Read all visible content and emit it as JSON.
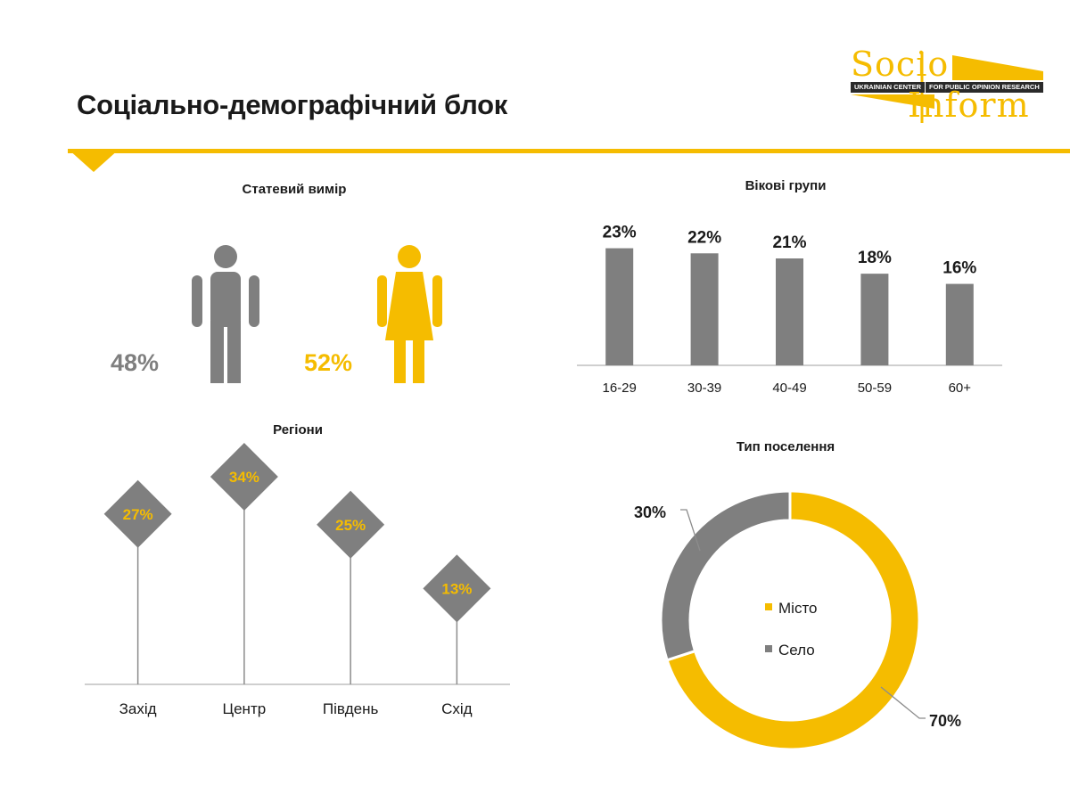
{
  "page": {
    "title": "Соціально-демографічний блок"
  },
  "logo": {
    "word1": "Socio",
    "word2": "Inform",
    "strip_left": "UKRAINIAN CENTER",
    "strip_right": "FOR PUBLIC OPINION RESEARCH"
  },
  "colors": {
    "accent": "#f5bc00",
    "gray": "#7f7f7f",
    "axis": "#bfbfbf"
  },
  "gender": {
    "title": "Статевий вимір",
    "male_pct": "48%",
    "female_pct": "52%",
    "male_icon": "male-figure-icon",
    "female_icon": "female-figure-icon"
  },
  "age": {
    "title": "Вікові групи"
  },
  "regions": {
    "title": "Регіони"
  },
  "settlement": {
    "title": "Тип поселення"
  },
  "chart_data": [
    {
      "type": "pie",
      "title": "Статевий вимір",
      "labels": [
        "",
        ""
      ],
      "values": [
        48,
        52
      ],
      "colors": [
        "#7f7f7f",
        "#f5bc00"
      ],
      "value_labels": [
        "48%",
        "52%"
      ]
    },
    {
      "type": "bar",
      "title": "Вікові групи",
      "categories": [
        "16-29",
        "30-39",
        "40-49",
        "50-59",
        "60+"
      ],
      "values": [
        23,
        22,
        21,
        18,
        16
      ],
      "value_labels": [
        "23%",
        "22%",
        "21%",
        "18%",
        "16%"
      ],
      "color": "#7f7f7f",
      "ylim": [
        0,
        28
      ],
      "grid": false
    },
    {
      "type": "bar",
      "title": "Регіони",
      "categories": [
        "Захід",
        "Центр",
        "Південь",
        "Схід"
      ],
      "values": [
        27,
        34,
        25,
        13
      ],
      "value_labels": [
        "27%",
        "34%",
        "25%",
        "13%"
      ],
      "color": "#7f7f7f",
      "label_color": "#f5bc00",
      "ylim": [
        0,
        40
      ],
      "grid": false
    },
    {
      "type": "pie",
      "title": "Тип поселення",
      "labels": [
        "Місто",
        "Село"
      ],
      "values": [
        70,
        30
      ],
      "value_labels": [
        "70%",
        "30%"
      ],
      "colors": [
        "#f5bc00",
        "#7f7f7f"
      ],
      "legend": "center"
    }
  ]
}
